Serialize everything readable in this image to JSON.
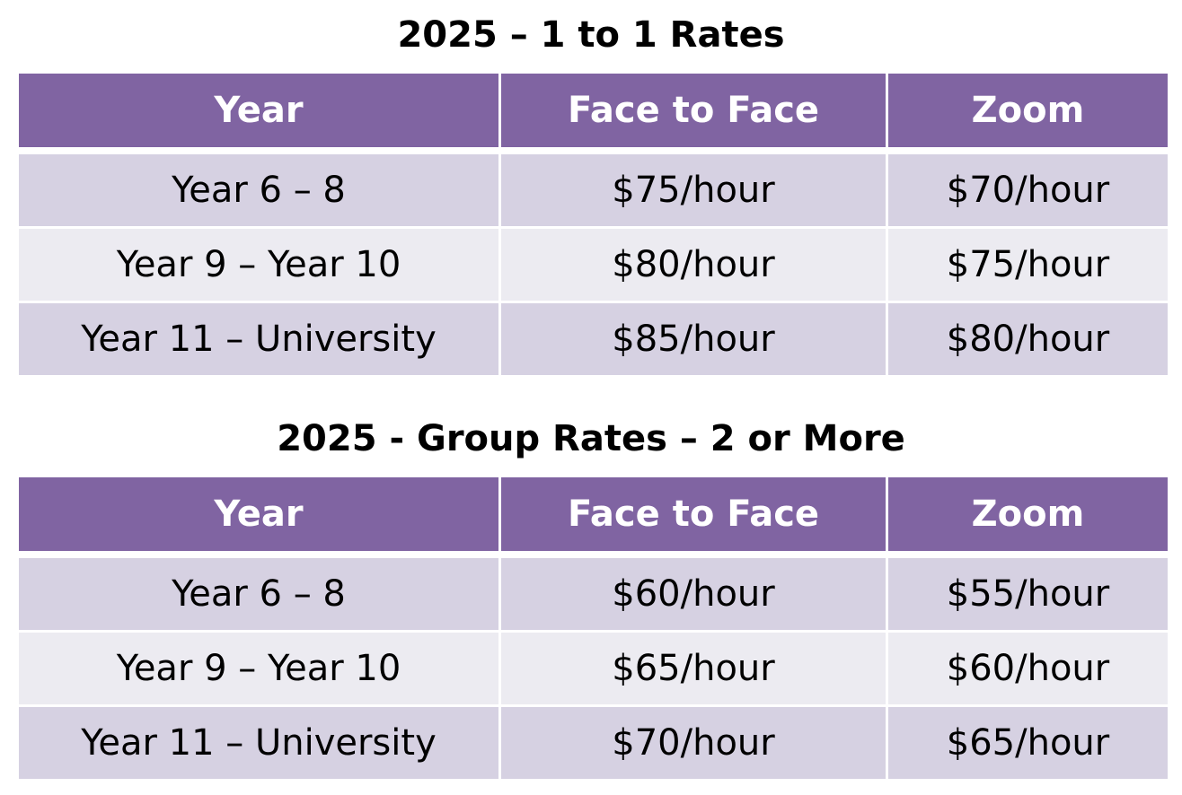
{
  "tables": [
    {
      "title": "2025 – 1 to 1 Rates",
      "headers": [
        "Year",
        "Face to Face",
        "Zoom"
      ],
      "rows": [
        [
          "Year 6 – 8",
          "$75/hour",
          "$70/hour"
        ],
        [
          "Year 9 – Year 10",
          "$80/hour",
          "$75/hour"
        ],
        [
          "Year 11 – University",
          "$85/hour",
          "$80/hour"
        ]
      ]
    },
    {
      "title": "2025 - Group Rates – 2 or More",
      "headers": [
        "Year",
        "Face to Face",
        "Zoom"
      ],
      "rows": [
        [
          "Year 6 – 8",
          "$60/hour",
          "$55/hour"
        ],
        [
          "Year 9 – Year 10",
          "$65/hour",
          "$60/hour"
        ],
        [
          "Year 11 – University",
          "$70/hour",
          "$65/hour"
        ]
      ]
    }
  ],
  "colors": {
    "header_bg": "#8064a2",
    "header_text": "#ffffff",
    "row_dark": "#d6d1e2",
    "row_light": "#ecebf1",
    "border": "#ffffff"
  }
}
